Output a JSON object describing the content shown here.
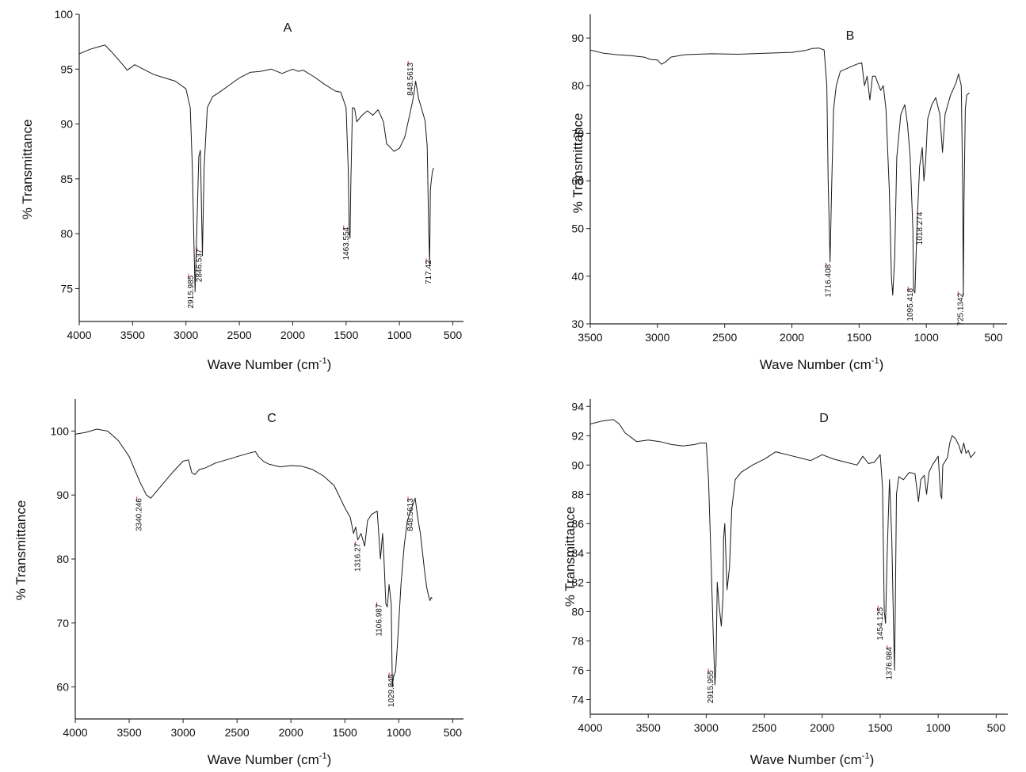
{
  "chart_data": [
    {
      "type": "line",
      "title": "A",
      "xlabel": "Wave Number (cm-1)",
      "ylabel": "% Transmittance",
      "xlim": [
        4000,
        400
      ],
      "ylim": [
        72,
        100
      ],
      "x_reversed": true,
      "xticks": [
        4000,
        3500,
        3000,
        2500,
        2000,
        1500,
        1000,
        500
      ],
      "yticks": [
        75,
        80,
        85,
        90,
        95,
        100
      ],
      "grid": false,
      "series": [
        {
          "x": [
            4000,
            3900,
            3760,
            3700,
            3600,
            3550,
            3480,
            3400,
            3300,
            3200,
            3100,
            3000,
            2960,
            2940,
            2925,
            2915,
            2905,
            2880,
            2865,
            2846,
            2830,
            2800,
            2750,
            2700,
            2600,
            2500,
            2400,
            2300,
            2200,
            2100,
            2000,
            1950,
            1900,
            1800,
            1700,
            1600,
            1550,
            1500,
            1480,
            1470,
            1463,
            1455,
            1440,
            1420,
            1400,
            1350,
            1300,
            1250,
            1200,
            1150,
            1120,
            1100,
            1050,
            1000,
            950,
            900,
            870,
            848,
            820,
            790,
            760,
            740,
            725,
            717,
            710,
            700,
            690,
            680
          ],
          "y": [
            96.4,
            96.8,
            97.2,
            96.6,
            95.5,
            94.9,
            95.4,
            95.0,
            94.5,
            94.2,
            93.9,
            93.2,
            91.5,
            86.0,
            79.0,
            74.7,
            78.0,
            87.0,
            87.6,
            78.0,
            86.0,
            91.5,
            92.5,
            92.8,
            93.5,
            94.2,
            94.7,
            94.8,
            95.0,
            94.6,
            95.0,
            94.8,
            94.9,
            94.3,
            93.6,
            93.0,
            92.9,
            91.5,
            86.0,
            80.0,
            79.6,
            85.0,
            91.5,
            91.4,
            90.2,
            90.8,
            91.2,
            90.8,
            91.3,
            90.2,
            88.2,
            88.0,
            87.5,
            87.8,
            88.8,
            91.0,
            92.4,
            93.9,
            92.3,
            91.3,
            90.3,
            88.0,
            80.0,
            77.2,
            84.0,
            85.0,
            85.7,
            86.0
          ]
        }
      ],
      "annotations": [
        "2915.985",
        "2846.537",
        "1463.554",
        "717.42",
        "848.5613"
      ]
    },
    {
      "type": "line",
      "title": "B",
      "xlabel": "Wave Number (cm-1)",
      "ylabel": "% Transmittance",
      "xlim": [
        3500,
        400
      ],
      "ylim": [
        30,
        95
      ],
      "x_reversed": true,
      "xticks": [
        3500,
        3000,
        2500,
        2000,
        1500,
        1000,
        500
      ],
      "yticks": [
        30,
        40,
        50,
        60,
        70,
        80,
        90
      ],
      "grid": false,
      "series": [
        {
          "x": [
            3500,
            3400,
            3300,
            3200,
            3100,
            3050,
            3000,
            2970,
            2940,
            2900,
            2800,
            2600,
            2400,
            2200,
            2000,
            1900,
            1850,
            1800,
            1760,
            1740,
            1730,
            1716,
            1705,
            1690,
            1670,
            1640,
            1600,
            1560,
            1520,
            1480,
            1460,
            1440,
            1420,
            1400,
            1380,
            1340,
            1320,
            1300,
            1275,
            1260,
            1250,
            1235,
            1220,
            1190,
            1160,
            1140,
            1120,
            1100,
            1095,
            1085,
            1070,
            1050,
            1030,
            1018,
            1005,
            990,
            960,
            930,
            900,
            880,
            860,
            820,
            780,
            760,
            740,
            730,
            725,
            720,
            710,
            700,
            680
          ],
          "y": [
            87.5,
            86.8,
            86.5,
            86.3,
            86.0,
            85.5,
            85.4,
            84.5,
            85.0,
            86.0,
            86.5,
            86.7,
            86.6,
            86.8,
            87.0,
            87.4,
            87.8,
            87.9,
            87.5,
            80.0,
            60.0,
            43.0,
            58.0,
            75.0,
            80.0,
            83.0,
            83.5,
            84.0,
            84.5,
            84.8,
            80.0,
            82.0,
            77.0,
            82.0,
            82.0,
            79.0,
            80.0,
            75.0,
            58.0,
            40.0,
            36.0,
            44.0,
            65.0,
            74.0,
            76.0,
            72.0,
            65.0,
            50.0,
            37.0,
            36.5,
            50.0,
            63.0,
            67.0,
            60.0,
            64.0,
            73.0,
            76.0,
            77.5,
            74.0,
            66.0,
            74.0,
            78.0,
            80.5,
            82.5,
            80.0,
            60.0,
            36.0,
            55.0,
            75.0,
            78.0,
            78.5
          ]
        }
      ],
      "annotations": [
        "1716.408",
        "1095.418",
        "1018.274",
        "725.1342"
      ]
    },
    {
      "type": "line",
      "title": "C",
      "xlabel": "Wave Number (cm-1)",
      "ylabel": "% Transmittance",
      "xlim": [
        4000,
        400
      ],
      "ylim": [
        55,
        105
      ],
      "x_reversed": true,
      "xticks": [
        4000,
        3500,
        3000,
        2500,
        2000,
        1500,
        1000,
        500
      ],
      "yticks": [
        60,
        70,
        80,
        90,
        100
      ],
      "grid": false,
      "series": [
        {
          "x": [
            4000,
            3900,
            3800,
            3700,
            3600,
            3500,
            3450,
            3400,
            3340,
            3300,
            3200,
            3100,
            3000,
            2950,
            2920,
            2890,
            2850,
            2800,
            2700,
            2600,
            2500,
            2400,
            2330,
            2300,
            2250,
            2200,
            2100,
            2000,
            1900,
            1800,
            1700,
            1600,
            1500,
            1450,
            1420,
            1400,
            1380,
            1350,
            1316,
            1290,
            1250,
            1200,
            1170,
            1150,
            1140,
            1120,
            1106,
            1090,
            1070,
            1060,
            1050,
            1040,
            1030,
            1015,
            1000,
            980,
            950,
            920,
            880,
            848,
            820,
            800,
            780,
            760,
            740,
            720,
            710,
            700,
            690
          ],
          "y": [
            99.5,
            99.8,
            100.3,
            100.0,
            98.5,
            96.0,
            94.0,
            92.0,
            90.0,
            89.5,
            91.5,
            93.5,
            95.3,
            95.5,
            93.5,
            93.2,
            94.0,
            94.2,
            95.0,
            95.5,
            96.0,
            96.5,
            96.8,
            96.0,
            95.2,
            94.8,
            94.4,
            94.6,
            94.5,
            94.0,
            93.0,
            91.5,
            88.0,
            86.5,
            84.0,
            85.0,
            83.0,
            84.0,
            82.0,
            86.0,
            87.0,
            87.5,
            80.0,
            84.0,
            81.0,
            73.0,
            72.5,
            76.0,
            73.0,
            60.0,
            61.5,
            62.0,
            62.5,
            66.0,
            70.0,
            76.0,
            82.0,
            86.0,
            88.0,
            89.5,
            86.0,
            84.0,
            81.0,
            78.0,
            75.5,
            74.0,
            73.5,
            74.0,
            73.8
          ]
        }
      ],
      "annotations": [
        "3340.246",
        "1316.27",
        "1106.987",
        "1029.845",
        "848.5613"
      ]
    },
    {
      "type": "line",
      "title": "D",
      "xlabel": "Wave Number (cm-1)",
      "ylabel": "% Transmittance",
      "xlim": [
        4000,
        400
      ],
      "ylim": [
        73,
        94.5
      ],
      "x_reversed": true,
      "xticks": [
        4000,
        3500,
        3000,
        2500,
        2000,
        1500,
        1000,
        500
      ],
      "yticks": [
        74,
        76,
        78,
        80,
        82,
        84,
        86,
        88,
        90,
        92,
        94
      ],
      "grid": false,
      "series": [
        {
          "x": [
            4000,
            3900,
            3800,
            3750,
            3700,
            3600,
            3500,
            3400,
            3300,
            3200,
            3100,
            3050,
            3000,
            2980,
            2960,
            2940,
            2925,
            2915,
            2905,
            2890,
            2870,
            2855,
            2850,
            2840,
            2820,
            2800,
            2780,
            2750,
            2700,
            2600,
            2500,
            2400,
            2350,
            2300,
            2200,
            2100,
            2000,
            1900,
            1800,
            1700,
            1650,
            1600,
            1550,
            1500,
            1480,
            1465,
            1454,
            1440,
            1420,
            1400,
            1385,
            1377,
            1370,
            1360,
            1340,
            1300,
            1250,
            1200,
            1170,
            1150,
            1120,
            1100,
            1080,
            1050,
            1000,
            980,
            970,
            960,
            920,
            900,
            880,
            850,
            820,
            800,
            780,
            760,
            740,
            720,
            700,
            680
          ],
          "y": [
            92.8,
            93.0,
            93.1,
            92.8,
            92.2,
            91.6,
            91.7,
            91.6,
            91.4,
            91.3,
            91.4,
            91.5,
            91.5,
            89.0,
            84.0,
            78.5,
            75.0,
            76.5,
            82.0,
            80.5,
            79.0,
            81.0,
            85.0,
            86.0,
            81.5,
            83.0,
            87.0,
            89.0,
            89.5,
            90.0,
            90.4,
            90.9,
            90.8,
            90.7,
            90.5,
            90.3,
            90.7,
            90.4,
            90.2,
            90.0,
            90.6,
            90.1,
            90.2,
            90.7,
            88.5,
            80.0,
            79.2,
            84.0,
            89.0,
            85.0,
            79.0,
            76.0,
            80.0,
            88.0,
            89.2,
            89.0,
            89.5,
            89.4,
            87.5,
            89.0,
            89.3,
            88.0,
            89.5,
            90.0,
            90.6,
            88.0,
            87.7,
            90.0,
            90.5,
            91.5,
            92.0,
            91.8,
            91.3,
            90.8,
            91.5,
            90.8,
            91.0,
            90.5,
            90.7,
            90.9
          ]
        }
      ],
      "annotations": [
        "2915.955",
        "1454.125",
        "1376.984"
      ]
    }
  ],
  "colors": {
    "line": "#1a1a1a",
    "axis": "#222222",
    "marker": "#cc3333"
  }
}
